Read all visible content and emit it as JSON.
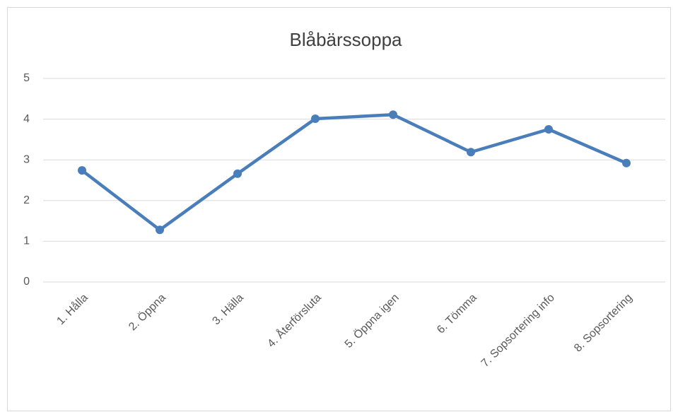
{
  "chart_data": {
    "type": "line",
    "title": "Blåbärssoppa",
    "categories": [
      "1. Hålla",
      "2. Öppna",
      "3. Hälla",
      "4. Återförsluta",
      "5. Öppna igen",
      "6. Tömma",
      "7. Sopsortering info",
      "8. Sopsortering"
    ],
    "values": [
      2.74,
      1.28,
      2.66,
      4.01,
      4.11,
      3.19,
      3.75,
      2.92
    ],
    "color": "#4a7ebb",
    "ylim": [
      0,
      5
    ],
    "yticks": [
      0,
      1,
      2,
      3,
      4,
      5
    ],
    "grid": true
  }
}
